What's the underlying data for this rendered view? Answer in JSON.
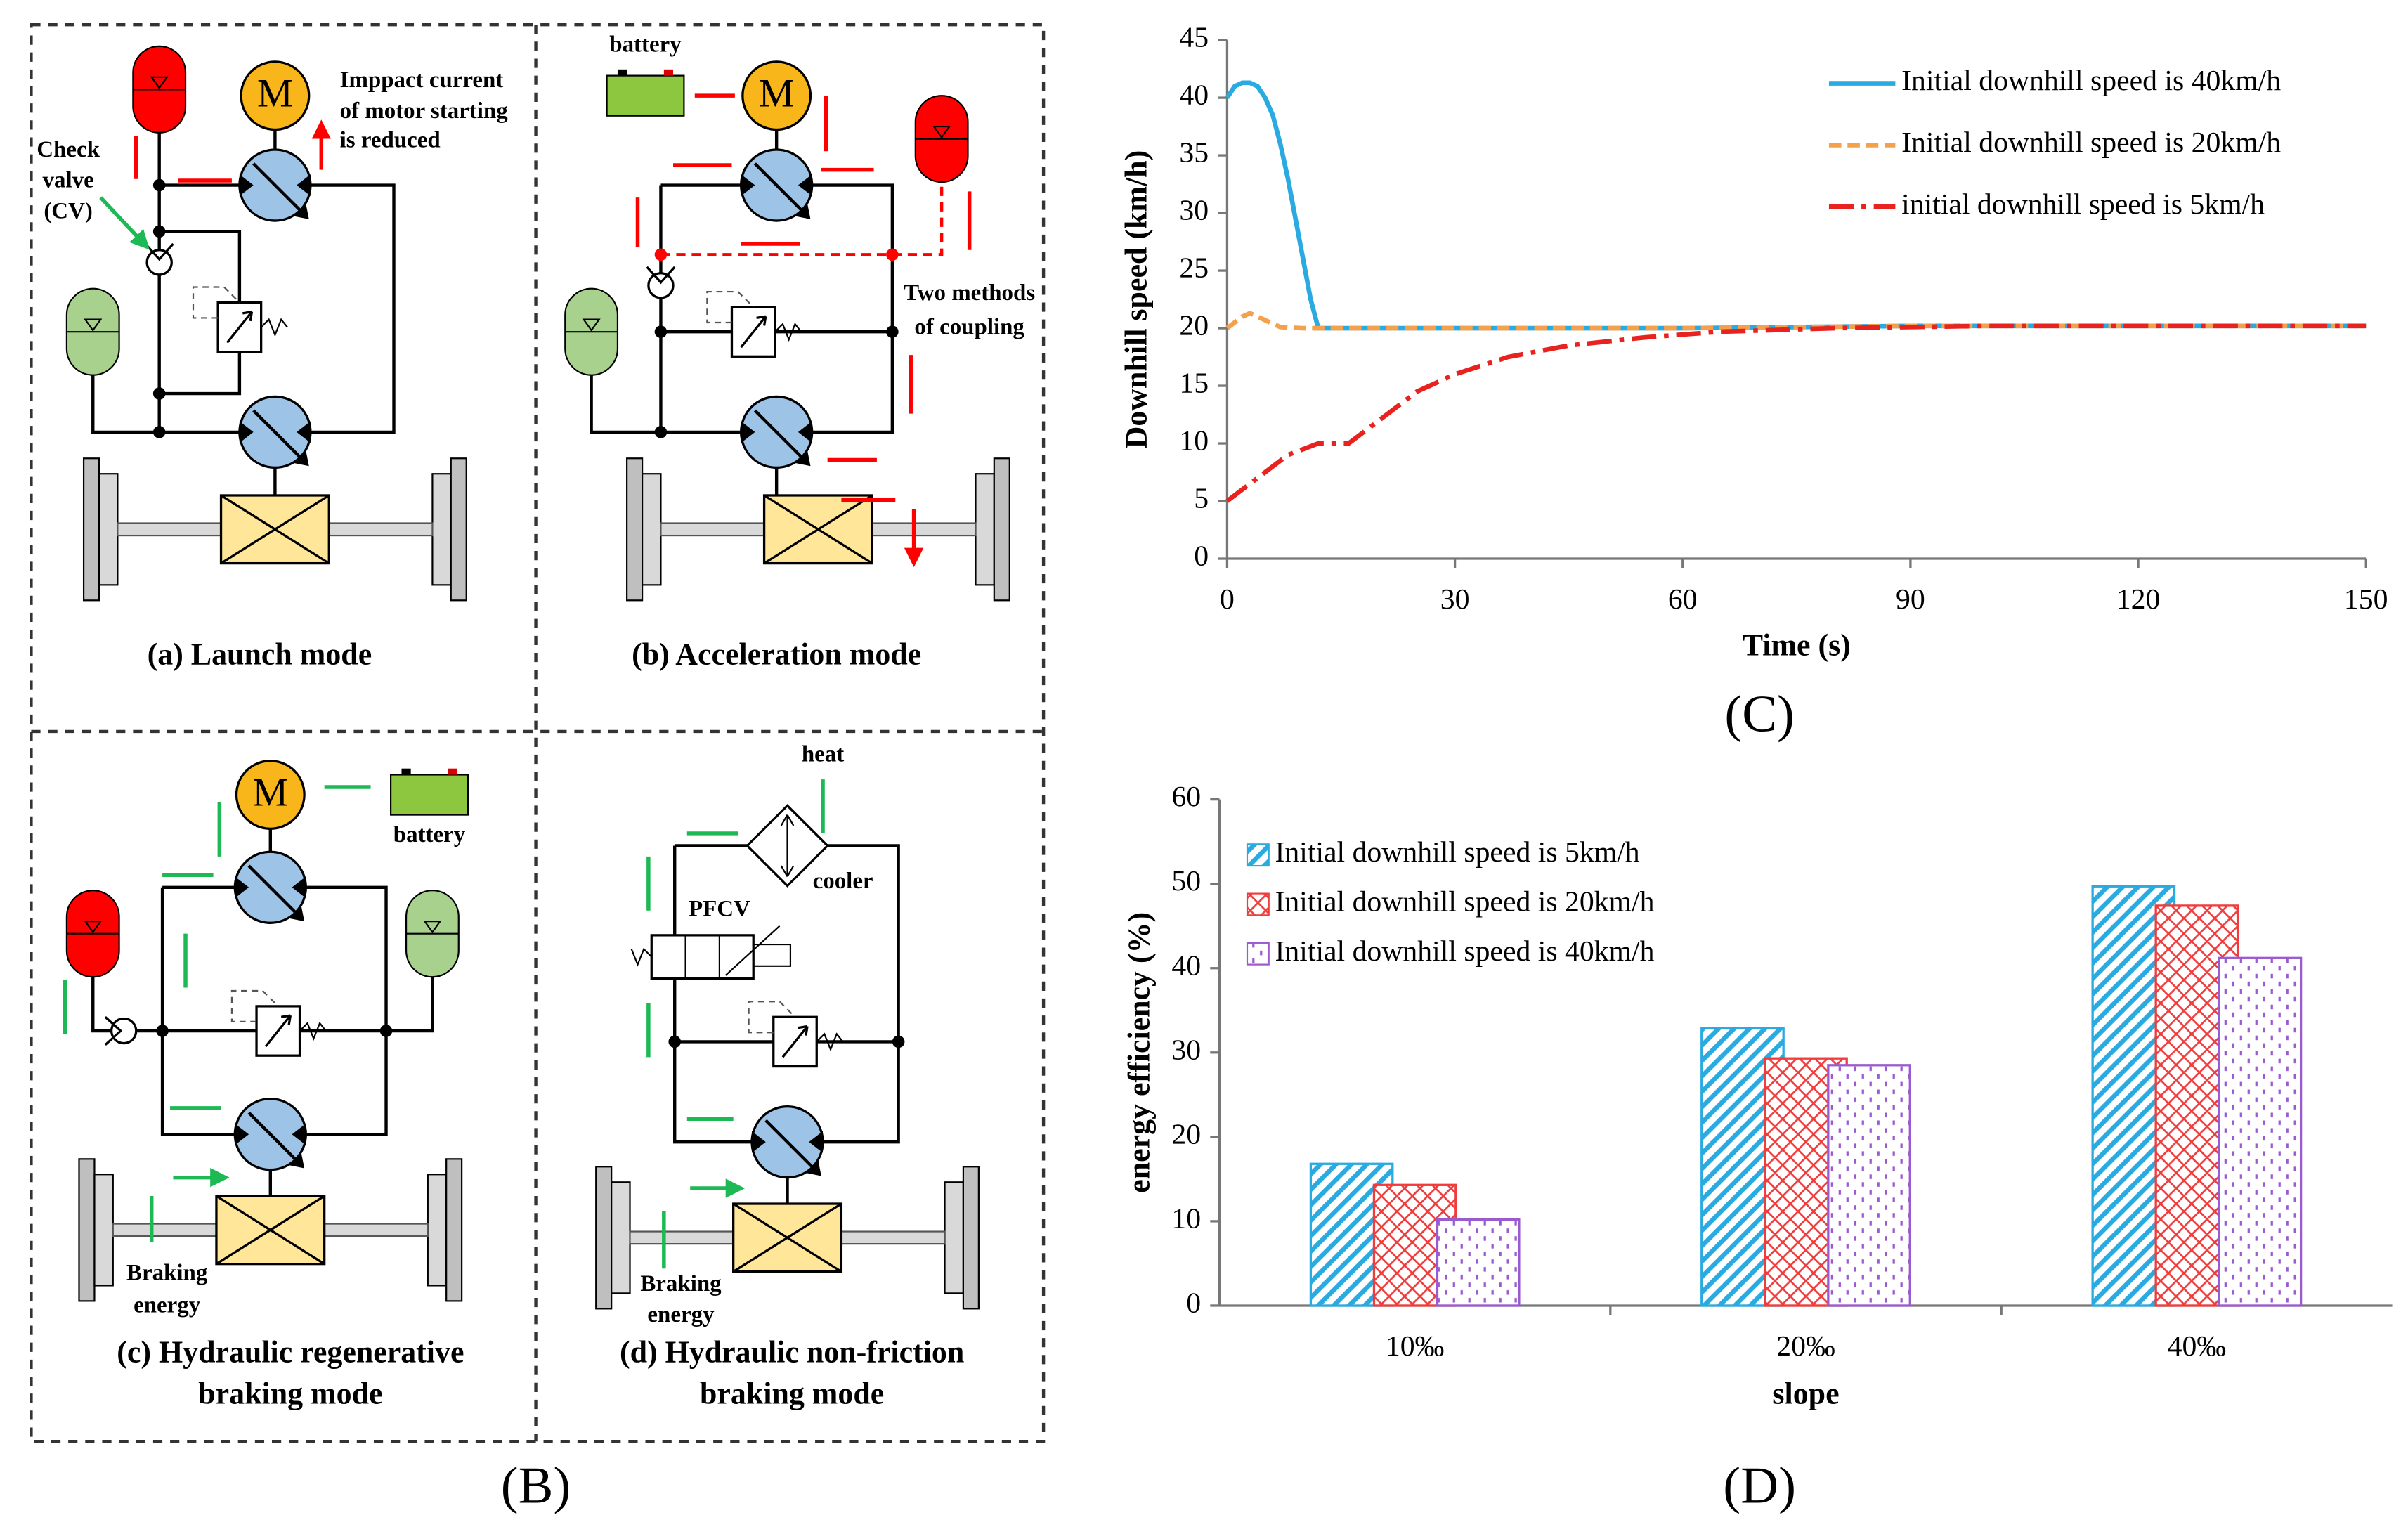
{
  "diagram": {
    "label": "(B)",
    "panels": [
      {
        "caption": [
          "(a) Launch mode"
        ],
        "texts": [
          "M",
          "Imppact  current",
          "of motor starting",
          "is reduced",
          "Check",
          "valve",
          "(CV)"
        ]
      },
      {
        "caption": [
          "(b) Acceleration mode"
        ],
        "texts": [
          "M",
          "battery",
          "Two methods",
          "of coupling"
        ]
      },
      {
        "caption": [
          "(c) Hydraulic regenerative",
          "braking mode"
        ],
        "texts": [
          "M",
          "battery",
          "Braking",
          "energy"
        ]
      },
      {
        "caption": [
          "(d) Hydraulic non-friction",
          "braking mode"
        ],
        "texts": [
          "heat",
          "cooler",
          "PFCV",
          "Braking",
          "energy"
        ]
      }
    ]
  },
  "chart_data": [
    {
      "type": "line",
      "label": "(C)",
      "xlabel": "Time (s)",
      "ylabel": "Downhill speed (km/h)",
      "xlim": [
        0,
        150
      ],
      "xticks": [
        0,
        30,
        60,
        90,
        120,
        150
      ],
      "ylim": [
        0,
        45
      ],
      "yticks": [
        0,
        5,
        10,
        15,
        20,
        25,
        30,
        35,
        40,
        45
      ],
      "legend": "upper right",
      "series": [
        {
          "name": "Initial downhill speed is 40km/h",
          "color": "#29aae1",
          "dash": "solid",
          "x": [
            0,
            1,
            2,
            3,
            4,
            5,
            6,
            7,
            8,
            9,
            10,
            11,
            12,
            15,
            30,
            60,
            90,
            120,
            150
          ],
          "values": [
            40,
            41,
            41.3,
            41.3,
            41,
            40,
            38.5,
            36,
            33,
            29.5,
            26,
            22.5,
            20,
            20,
            20,
            20,
            20.2,
            20.2,
            20.2
          ]
        },
        {
          "name": "Initial downhill speed is 20km/h",
          "color": "#f5a04a",
          "dash": "dashed",
          "x": [
            0,
            2,
            3,
            5,
            7,
            10,
            30,
            60,
            90,
            120,
            150
          ],
          "values": [
            20,
            21,
            21.3,
            20.7,
            20.1,
            20,
            20,
            20,
            20.2,
            20.2,
            20.2
          ]
        },
        {
          "name": "initial downhill speed is 5km/h",
          "color": "#e8231f",
          "dash": "dashdot",
          "x": [
            0,
            4,
            8,
            12,
            16,
            20,
            25,
            30,
            37,
            45,
            55,
            65,
            80,
            100,
            120,
            150
          ],
          "values": [
            5,
            7,
            9,
            10,
            10,
            12,
            14.5,
            16,
            17.5,
            18.5,
            19.2,
            19.7,
            20,
            20.2,
            20.2,
            20.2
          ]
        }
      ]
    },
    {
      "type": "bar",
      "label": "(D)",
      "xlabel": "slope",
      "ylabel": "energy efficiency (%)",
      "categories": [
        "10‰",
        "20‰",
        "40‰"
      ],
      "ylim": [
        0,
        60
      ],
      "yticks": [
        0,
        10,
        20,
        30,
        40,
        50,
        60
      ],
      "legend": "upper left",
      "series": [
        {
          "name": "Initial downhill speed is 5km/h",
          "color": "#29aae1",
          "hatch": "diagonal",
          "values": [
            16.8,
            32.9,
            49.7
          ]
        },
        {
          "name": "Initial downhill speed is 20km/h",
          "color": "#f03c3c",
          "hatch": "cross",
          "values": [
            14.3,
            29.3,
            47.4
          ]
        },
        {
          "name": "Initial downhill speed is 40km/h",
          "color": "#9a5bd1",
          "hatch": "dots",
          "values": [
            10.2,
            28.5,
            41.2
          ]
        }
      ]
    }
  ]
}
